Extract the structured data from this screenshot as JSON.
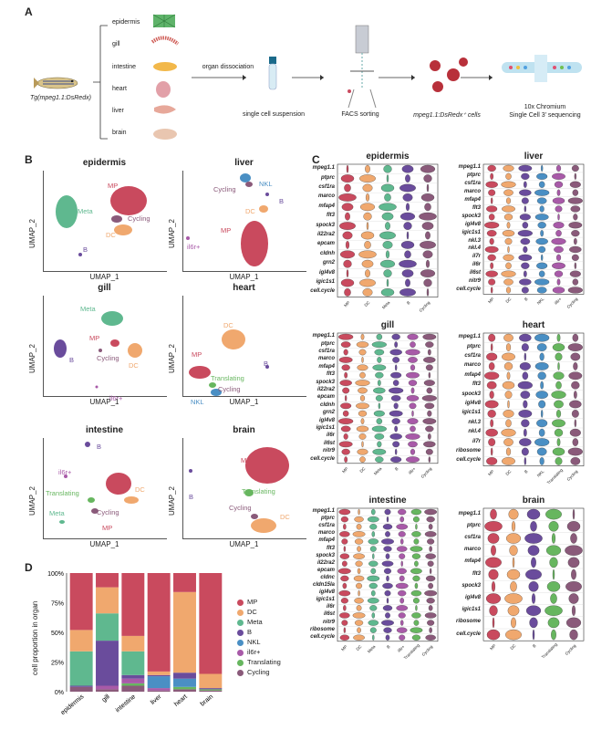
{
  "panels": {
    "a": "A",
    "b": "B",
    "c": "C",
    "d": "D"
  },
  "colors": {
    "MP": "#c94a5e",
    "DC": "#f0a86e",
    "Meta": "#5fb88f",
    "B": "#6a4c9c",
    "NKL": "#4a8fc4",
    "il6r+": "#a85aa8",
    "Translating": "#67b65f",
    "Cycling": "#8a5a7a"
  },
  "workflow": {
    "fish_label": "Tg(mpeg1.1:DsRedx)",
    "organs": [
      "epidermis",
      "gill",
      "intestine",
      "heart",
      "liver",
      "brain"
    ],
    "step1": "organ dissociation",
    "step2": "single cell suspension",
    "step3": "FACS sorting",
    "step4": "mpeg1.1:DsRedx⁺ cells",
    "step5a": "10x Chromium",
    "step5b": "Single Cell 3' sequencing"
  },
  "umap": {
    "xlabel": "UMAP_1",
    "ylabel": "UMAP_2",
    "plots": [
      {
        "title": "epidermis",
        "labels": [
          "MP",
          "Meta",
          "Cycling",
          "DC",
          "B"
        ]
      },
      {
        "title": "liver",
        "labels": [
          "Cycling",
          "NKL",
          "B",
          "DC",
          "MP",
          "il6r+"
        ]
      },
      {
        "title": "gill",
        "labels": [
          "Meta",
          "MP",
          "B",
          "Cycling",
          "DC",
          "il6r+"
        ]
      },
      {
        "title": "heart",
        "labels": [
          "DC",
          "MP",
          "B",
          "Translating",
          "Cycling",
          "NKL"
        ]
      },
      {
        "title": "intestine",
        "labels": [
          "B",
          "il6r+",
          "Translating",
          "Meta",
          "DC",
          "Cycling",
          "MP"
        ]
      },
      {
        "title": "brain",
        "labels": [
          "MP",
          "B",
          "Translating",
          "Cycling",
          "DC"
        ]
      }
    ]
  },
  "violins": [
    {
      "title": "epidermis",
      "genes": [
        "mpeg1.1",
        "ptprc",
        "csf1ra",
        "marco",
        "mfap4",
        "flt3",
        "spock3",
        "il22ra2",
        "epcam",
        "cldnh",
        "grn2",
        "igl4v8",
        "igic1s1",
        "cell.cycle"
      ],
      "cells": [
        "MP",
        "DC",
        "Meta",
        "B",
        "Cycling"
      ]
    },
    {
      "title": "liver",
      "genes": [
        "mpeg1.1",
        "ptprc",
        "csf1ra",
        "marco",
        "mfap4",
        "flt3",
        "spock3",
        "igl4v8",
        "igic1s1",
        "nkl.3",
        "nkl.4",
        "il7r",
        "il6r",
        "il6st",
        "nitr9",
        "cell.cycle"
      ],
      "cells": [
        "MP",
        "DC",
        "B",
        "NKL",
        "il6r+",
        "Cycling"
      ]
    },
    {
      "title": "gill",
      "genes": [
        "mpeg1.1",
        "ptprc",
        "csf1ra",
        "marco",
        "mfap4",
        "flt3",
        "spock3",
        "il22ra2",
        "epcam",
        "cldnh",
        "grn2",
        "igl4v8",
        "igic1s1",
        "il6r",
        "il6st",
        "nitr9",
        "cell.cycle"
      ],
      "cells": [
        "MP",
        "DC",
        "Meta",
        "B",
        "il6r+",
        "Cycling"
      ]
    },
    {
      "title": "heart",
      "genes": [
        "mpeg1.1",
        "ptprc",
        "csf1ra",
        "marco",
        "mfap4",
        "flt3",
        "spock3",
        "igl4v8",
        "igic1s1",
        "nkl.3",
        "nkl.4",
        "il7r",
        "ribosome",
        "cell.cycle"
      ],
      "cells": [
        "MP",
        "DC",
        "B",
        "NKL",
        "Translating",
        "Cycling"
      ]
    },
    {
      "title": "intestine",
      "genes": [
        "mpeg1.1",
        "ptprc",
        "csf1ra",
        "marco",
        "mfap4",
        "flt3",
        "spock3",
        "il22ra2",
        "epcam",
        "cldnc",
        "cldn15la",
        "igl4v8",
        "igic1s1",
        "il6r",
        "il6st",
        "nitr9",
        "ribosome",
        "cell.cycle"
      ],
      "cells": [
        "MP",
        "DC",
        "Meta",
        "B",
        "il6r+",
        "Translating",
        "Cycling"
      ]
    },
    {
      "title": "brain",
      "genes": [
        "mpeg1.1",
        "ptprc",
        "csf1ra",
        "marco",
        "mfap4",
        "flt3",
        "spock3",
        "igl4v8",
        "igic1s1",
        "ribosome",
        "cell.cycle"
      ],
      "cells": [
        "MP",
        "DC",
        "B",
        "Translating",
        "Cycling"
      ]
    }
  ],
  "chart_data": {
    "type": "bar",
    "stacked": true,
    "ylabel": "cell proportion in organ",
    "categories": [
      "epidermis",
      "gill",
      "intestine",
      "liver",
      "heart",
      "brain"
    ],
    "yticks": [
      "0%",
      "25%",
      "50%",
      "75%",
      "100%"
    ],
    "series": [
      {
        "name": "Cycling",
        "values": [
          4,
          2,
          5,
          1,
          2,
          1
        ]
      },
      {
        "name": "Translating",
        "values": [
          0,
          0,
          2,
          0,
          2,
          1
        ]
      },
      {
        "name": "il6r+",
        "values": [
          0,
          3,
          4,
          2,
          0,
          0
        ]
      },
      {
        "name": "NKL",
        "values": [
          0,
          0,
          0,
          10,
          7,
          0
        ]
      },
      {
        "name": "B",
        "values": [
          1,
          38,
          3,
          1,
          5,
          1
        ]
      },
      {
        "name": "Meta",
        "values": [
          29,
          23,
          20,
          0,
          0,
          0
        ]
      },
      {
        "name": "DC",
        "values": [
          18,
          22,
          13,
          3,
          68,
          12
        ]
      },
      {
        "name": "MP",
        "values": [
          48,
          12,
          53,
          83,
          16,
          85
        ]
      }
    ],
    "legend": [
      "MP",
      "DC",
      "Meta",
      "B",
      "NKL",
      "il6r+",
      "Translating",
      "Cycling"
    ]
  }
}
